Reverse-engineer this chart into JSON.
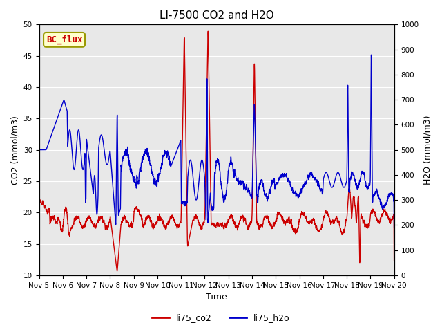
{
  "title": "LI-7500 CO2 and H2O",
  "xlabel": "Time",
  "ylabel_left": "CO2 (mmol/m3)",
  "ylabel_right": "H2O (mmol/m3)",
  "ylim_left": [
    10,
    50
  ],
  "ylim_right": [
    0,
    1000
  ],
  "co2_color": "#cc0000",
  "h2o_color": "#0000cc",
  "legend_label_co2": "li75_co2",
  "legend_label_h2o": "li75_h2o",
  "annotation_text": "BC_flux",
  "annotation_color": "#cc0000",
  "annotation_bg": "#ffffcc",
  "annotation_border": "#999900",
  "background_color": "#e8e8e8",
  "grid_color": "#ffffff",
  "title_fontsize": 11,
  "axis_label_fontsize": 9,
  "tick_fontsize": 7.5,
  "legend_fontsize": 9,
  "line_width": 1.0,
  "num_points": 5000
}
